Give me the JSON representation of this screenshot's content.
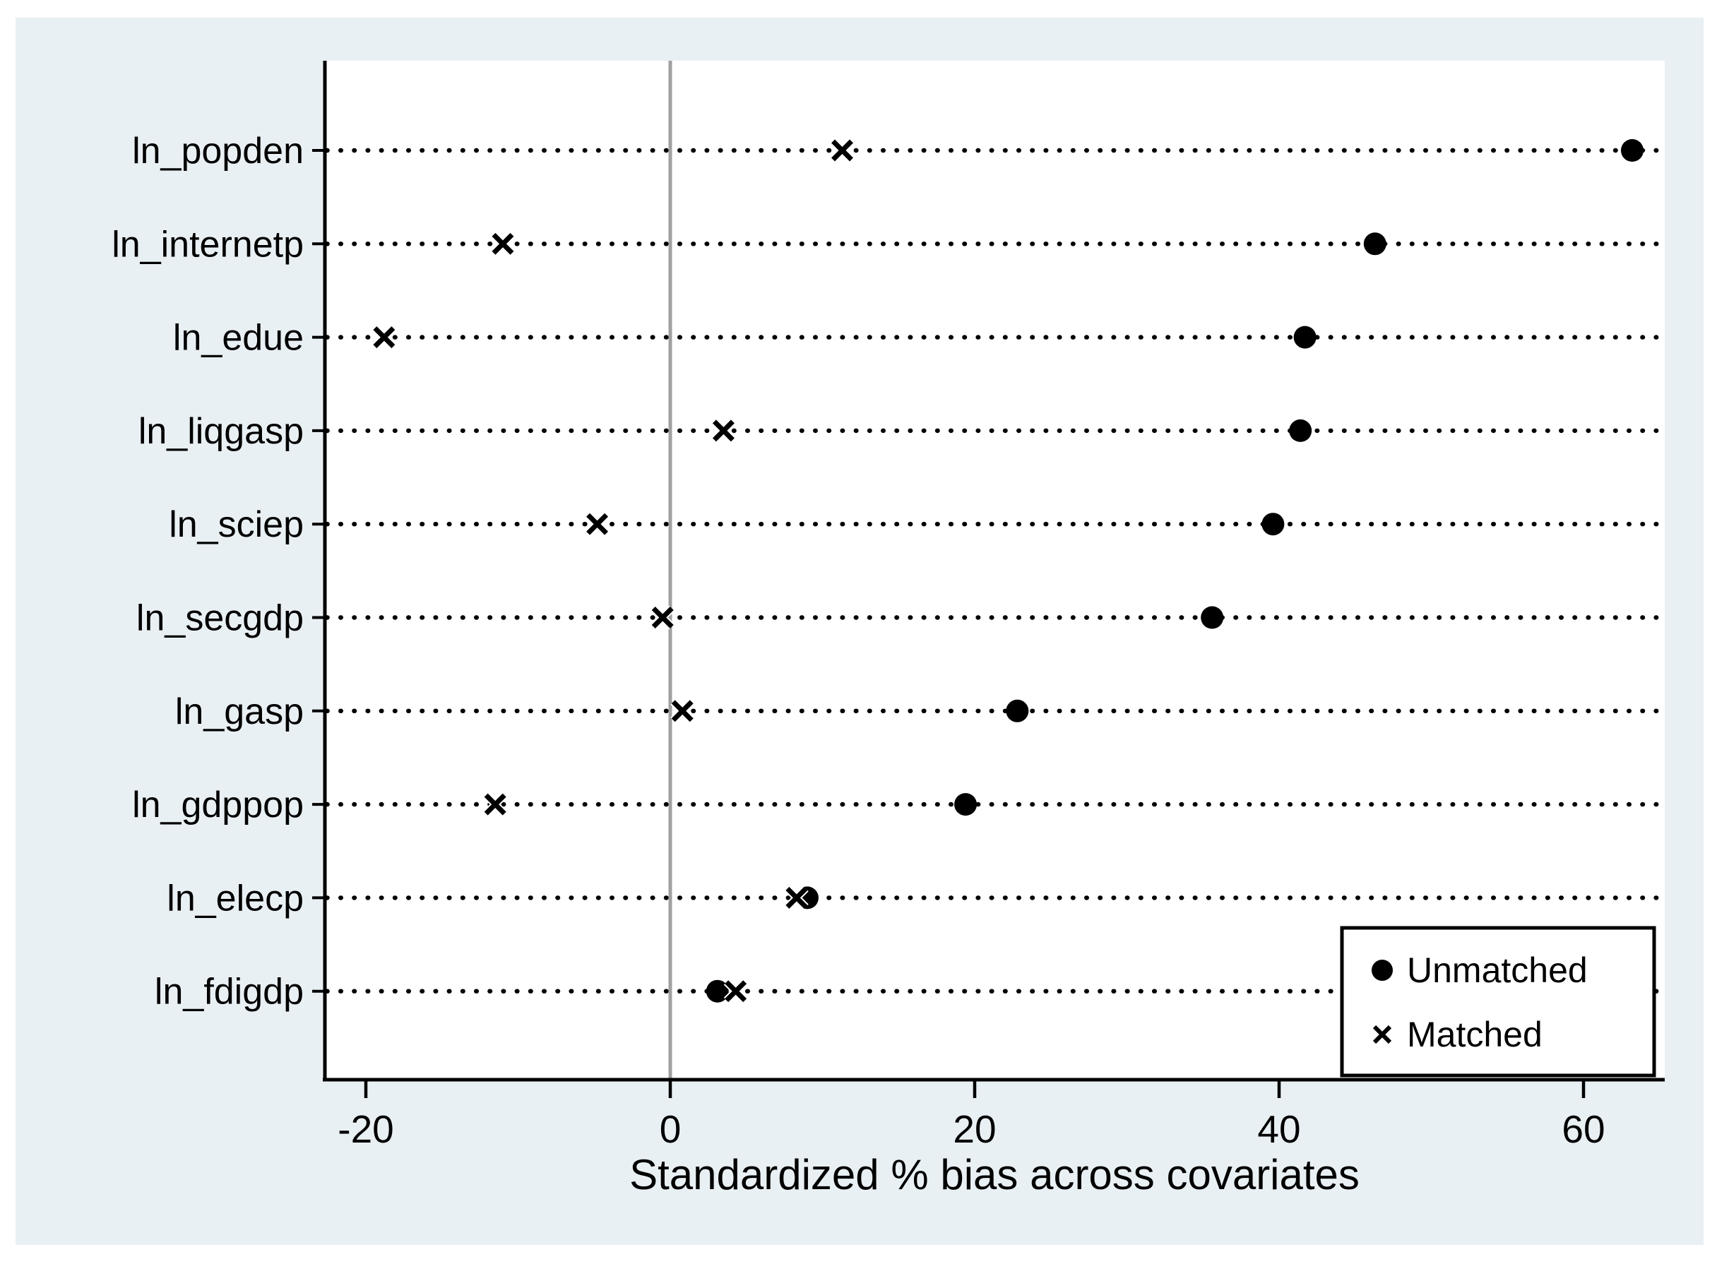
{
  "chart_data": {
    "type": "scatter",
    "title": "",
    "xlabel": "Standardized % bias across covariates",
    "ylabel": "",
    "x_ticks": [
      -20,
      0,
      20,
      40,
      60
    ],
    "x_tick_labels": [
      "-20",
      "0",
      "20",
      "40",
      "60"
    ],
    "x_range": [
      -22.5,
      65.3
    ],
    "reference_line_x": 0,
    "grid": "dotted horizontal line per category",
    "legend_position": "inside bottom-right",
    "categories": [
      "ln_popden",
      "ln_internetp",
      "ln_edue",
      "ln_liqgasp",
      "ln_sciep",
      "ln_secgdp",
      "ln_gasp",
      "ln_gdppop",
      "ln_elecp",
      "ln_fdigdp"
    ],
    "series": [
      {
        "name": "Unmatched",
        "marker": "filled-circle",
        "values": [
          63.2,
          46.3,
          41.7,
          41.4,
          39.6,
          35.6,
          22.8,
          19.4,
          9.0,
          3.1
        ]
      },
      {
        "name": "Matched",
        "marker": "x",
        "values": [
          11.3,
          -11.0,
          -18.8,
          3.5,
          -4.8,
          -0.5,
          0.8,
          -11.5,
          8.3,
          4.3
        ]
      }
    ]
  },
  "legend": {
    "items": [
      {
        "label": "Unmatched",
        "marker": "filled-circle"
      },
      {
        "label": "Matched",
        "marker": "x"
      }
    ]
  },
  "colors": {
    "marker": "#000000",
    "axis": "#000000",
    "dotted_line": "#000000",
    "zero_line": "#a0a0a0",
    "graphregion_background": "#e9f0f3",
    "plotregion_background": "#ffffff",
    "outer_background": "#ffffff",
    "legend_background": "#ffffff",
    "legend_border": "#000000"
  }
}
